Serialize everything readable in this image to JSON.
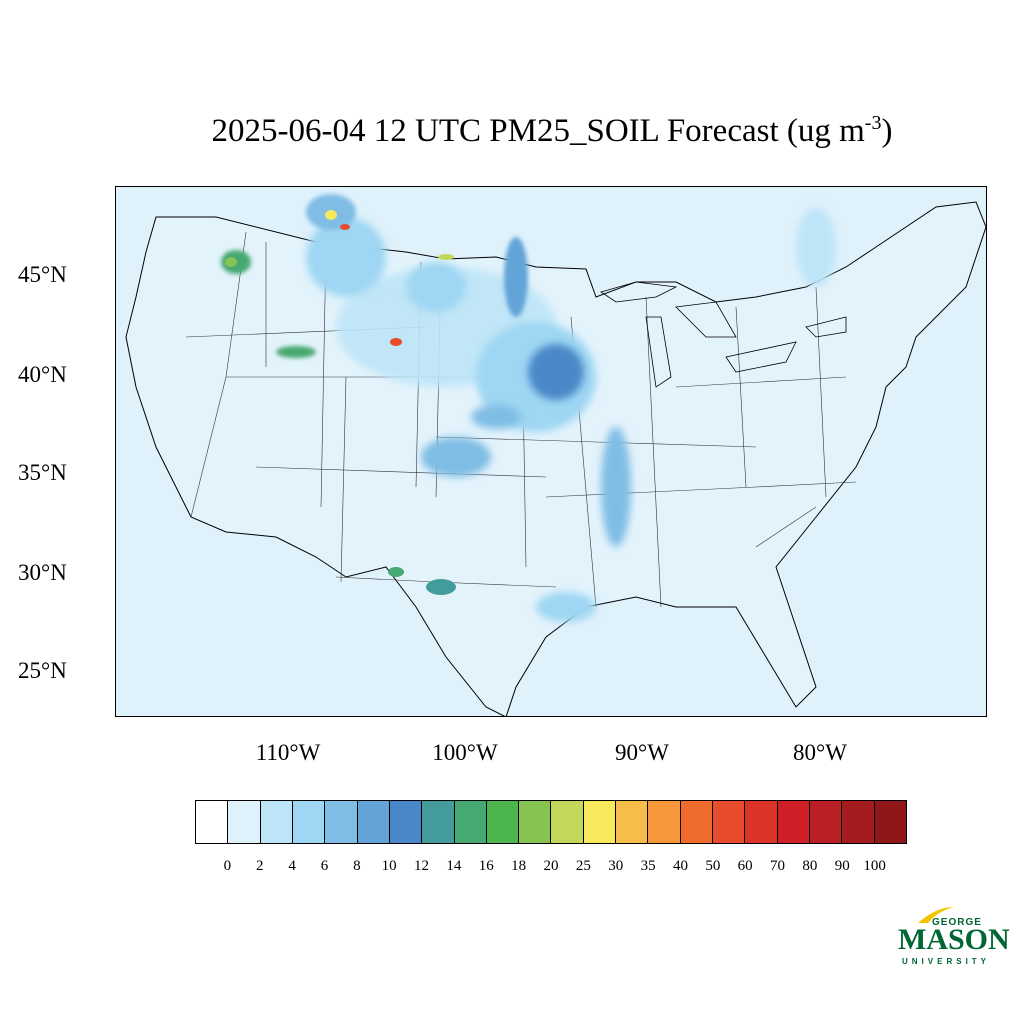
{
  "title": {
    "main": "2025-06-04 12 UTC PM25_SOIL Forecast (ug m",
    "superscript": "-3",
    "close": ")"
  },
  "map": {
    "background_color": "#dff1fb",
    "latitude_labels": [
      "45°N",
      "40°N",
      "35°N",
      "30°N",
      "25°N"
    ],
    "longitude_labels": [
      "110°W",
      "100°W",
      "90°W",
      "80°W"
    ]
  },
  "colorbar": {
    "colors": [
      "#ffffff",
      "#dff1fb",
      "#bde5f7",
      "#9ed6f3",
      "#7fbde5",
      "#62a4d8",
      "#4a87c8",
      "#449b9b",
      "#46a872",
      "#4cb54d",
      "#86c350",
      "#c3d75a",
      "#f8e85b",
      "#f6bd4a",
      "#f5973a",
      "#f06c2c",
      "#e84c2c",
      "#dc3329",
      "#cf2028",
      "#b91f25",
      "#a41c20",
      "#8f1717"
    ],
    "labels": [
      "0",
      "2",
      "4",
      "6",
      "8",
      "10",
      "12",
      "14",
      "16",
      "18",
      "20",
      "25",
      "30",
      "35",
      "40",
      "50",
      "60",
      "70",
      "80",
      "90",
      "100"
    ]
  },
  "logo": {
    "george": "GEORGE",
    "mason": "MASON",
    "university": "UNIVERSITY",
    "color": "#006633",
    "accent": "#f2c400"
  }
}
